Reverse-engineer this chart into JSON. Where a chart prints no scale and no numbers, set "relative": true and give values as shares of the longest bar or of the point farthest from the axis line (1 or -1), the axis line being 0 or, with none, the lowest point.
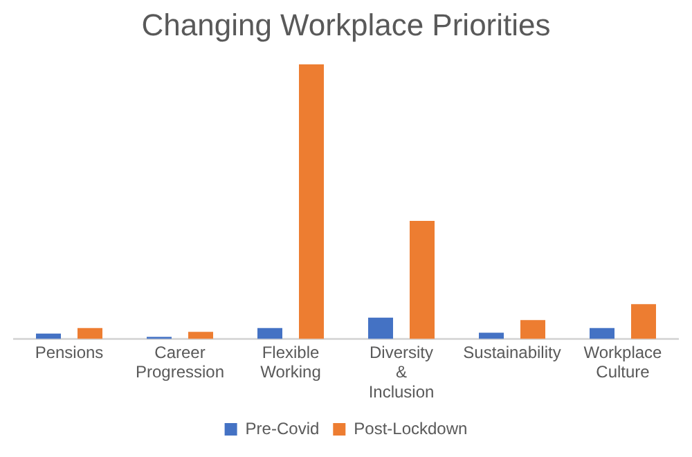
{
  "chart_data": {
    "type": "bar",
    "title": "Changing Workplace Priorities",
    "relative": true,
    "legend": "bottom",
    "categories": [
      "Pensions",
      "Career Progression",
      "Flexible Working",
      "Diversity & Inclusion",
      "Sustainability",
      "Workplace Culture"
    ],
    "series": [
      {
        "name": "Pre-Covid",
        "color": "#4472c4",
        "values": [
          0.02,
          0.008,
          0.04,
          0.078,
          0.023,
          0.04
        ]
      },
      {
        "name": "Post-Lockdown",
        "color": "#ed7d31",
        "values": [
          0.04,
          0.026,
          1,
          0.43,
          0.069,
          0.127
        ]
      }
    ]
  }
}
